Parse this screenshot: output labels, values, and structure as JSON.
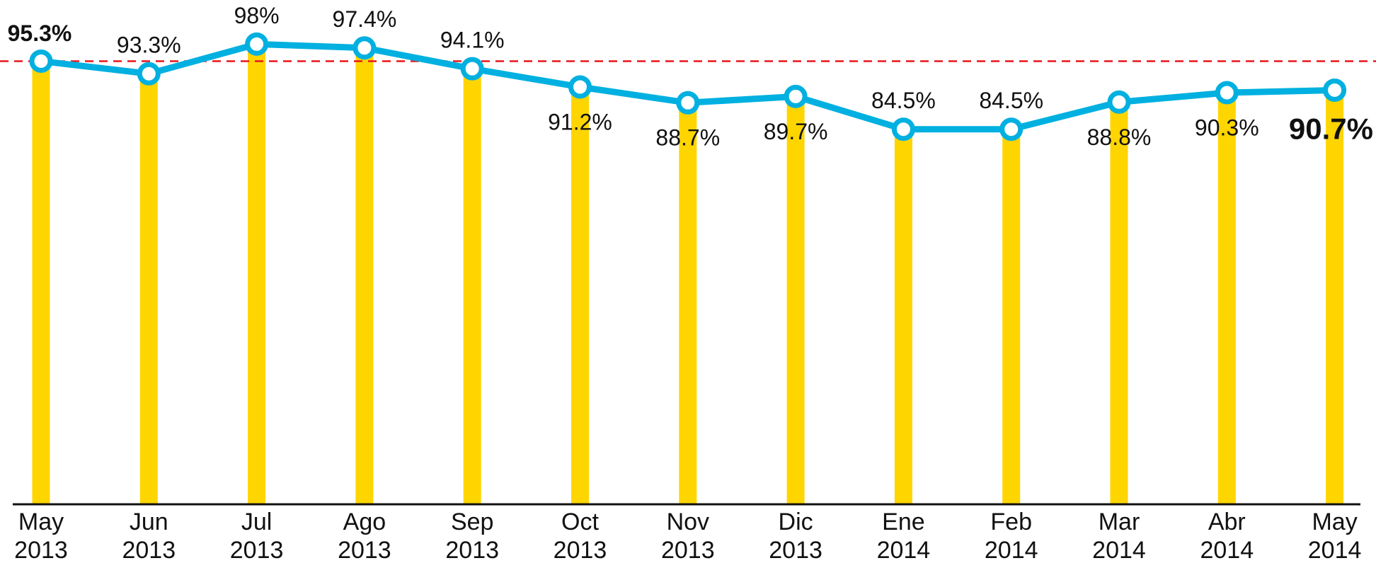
{
  "chart_data": {
    "type": "bar_line",
    "categories": [
      [
        "May",
        "2013"
      ],
      [
        "Jun",
        "2013"
      ],
      [
        "Jul",
        "2013"
      ],
      [
        "Ago",
        "2013"
      ],
      [
        "Sep",
        "2013"
      ],
      [
        "Oct",
        "2013"
      ],
      [
        "Nov",
        "2013"
      ],
      [
        "Dic",
        "2013"
      ],
      [
        "Ene",
        "2014"
      ],
      [
        "Feb",
        "2014"
      ],
      [
        "Mar",
        "2014"
      ],
      [
        "Abr",
        "2014"
      ],
      [
        "May",
        "2014"
      ]
    ],
    "values": [
      95.3,
      93.3,
      98,
      97.4,
      94.1,
      91.2,
      88.7,
      89.7,
      84.5,
      84.5,
      88.8,
      90.3,
      90.7
    ],
    "value_labels": [
      "95.3%",
      "93.3%",
      "98%",
      "97.4%",
      "94.1%",
      "91.2%",
      "88.7%",
      "89.7%",
      "84.5%",
      "84.5%",
      "88.8%",
      "90.3%",
      "90.7%"
    ],
    "bar_color": "#ffd500",
    "line_color": "#00b0e0",
    "reference_value": 95.3,
    "reference_color": "#e8161b",
    "ylim": [
      25,
      105
    ]
  }
}
